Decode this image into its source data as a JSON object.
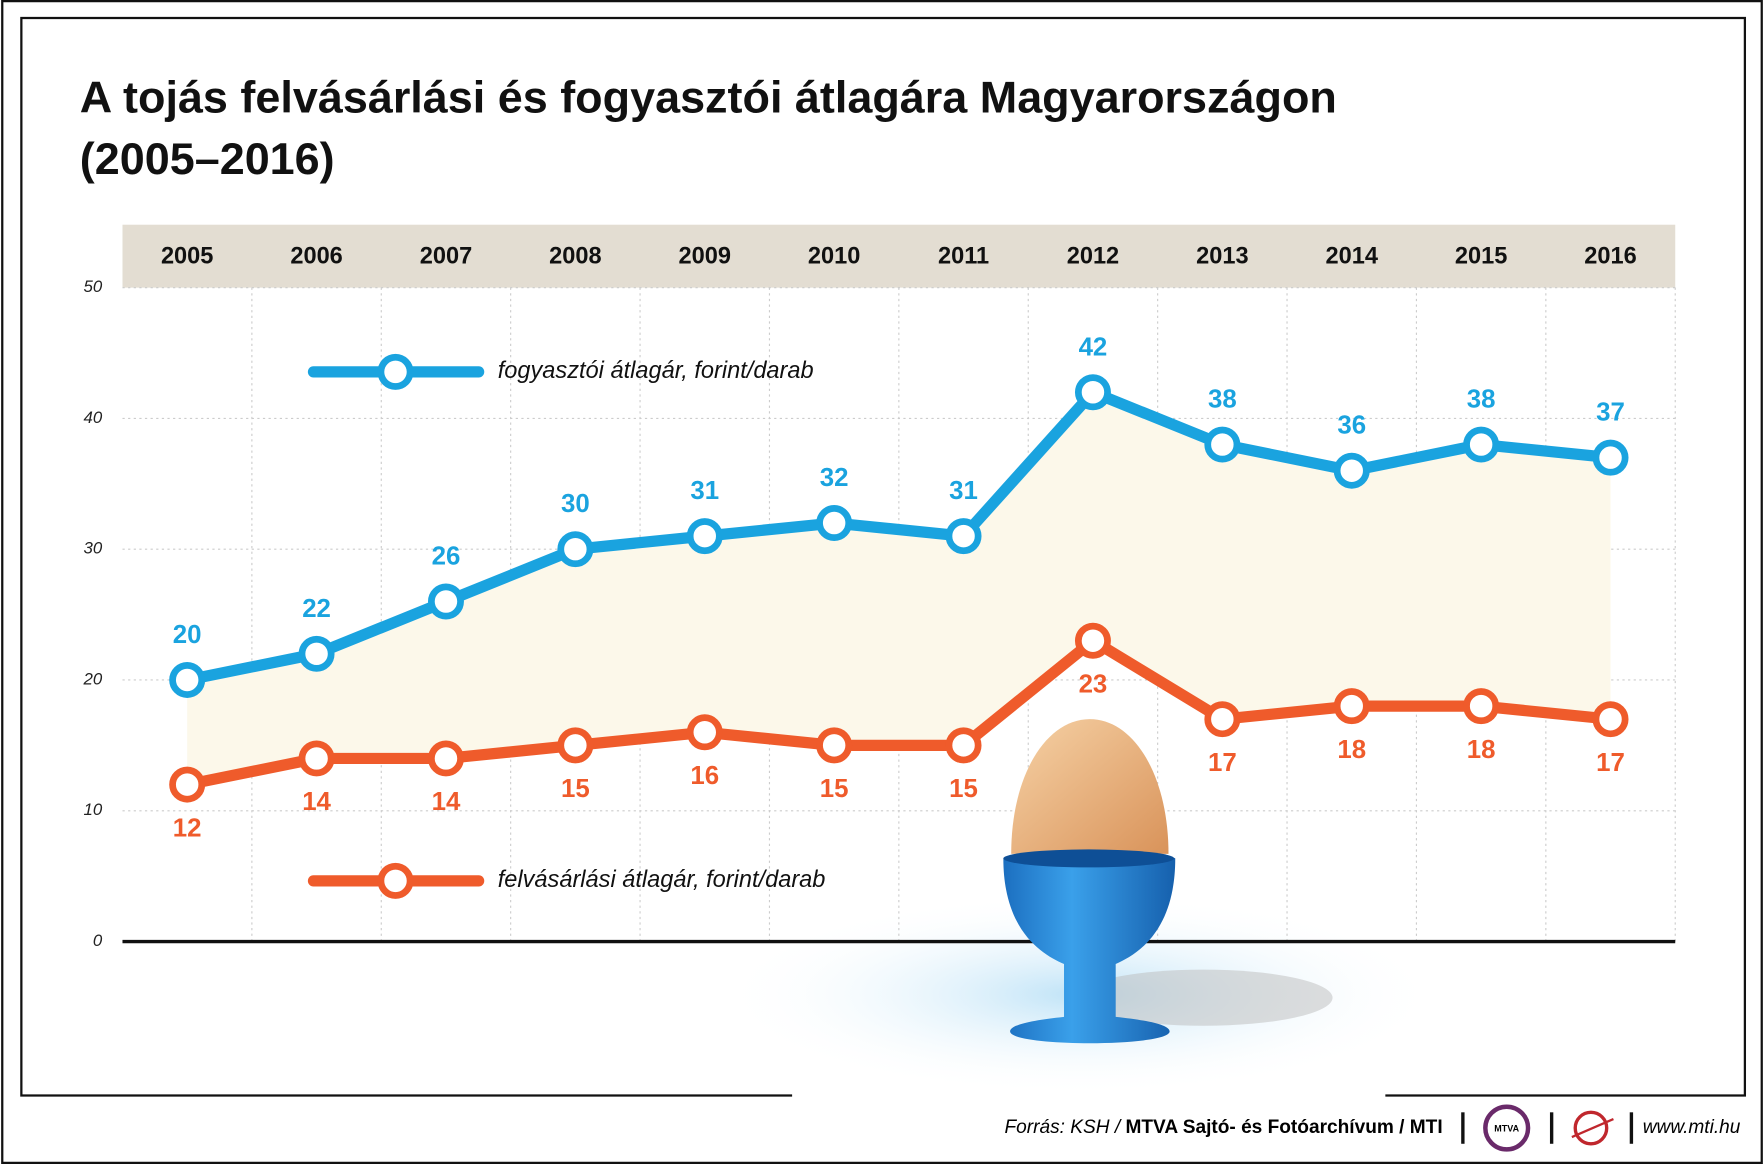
{
  "chart_data": {
    "type": "line",
    "title": "A tojás felvásárlási és fogyasztói átlagára Magyarországon",
    "subtitle": "(2005–2016)",
    "categories": [
      "2005",
      "2006",
      "2007",
      "2008",
      "2009",
      "2010",
      "2011",
      "2012",
      "2013",
      "2014",
      "2015",
      "2016"
    ],
    "series": [
      {
        "name": "fogyasztói átlagár, forint/darab",
        "color": "#1aa3df",
        "values": [
          20,
          22,
          26,
          30,
          31,
          32,
          31,
          42,
          38,
          36,
          38,
          37
        ]
      },
      {
        "name": "felvásárlási átlagár, forint/darab",
        "color": "#ef5b2b",
        "values": [
          12,
          14,
          14,
          15,
          16,
          15,
          15,
          23,
          17,
          18,
          18,
          17
        ]
      }
    ],
    "ylim": [
      0,
      50
    ],
    "yticks": [
      0,
      10,
      20,
      30,
      40,
      50
    ],
    "grid": true,
    "footer": {
      "source": "Forrás: KSH /",
      "credit": "MTVA Sajtó- és Fotóarchívum / MTI",
      "logo": "MTVA",
      "url": "www.mti.hu"
    }
  }
}
